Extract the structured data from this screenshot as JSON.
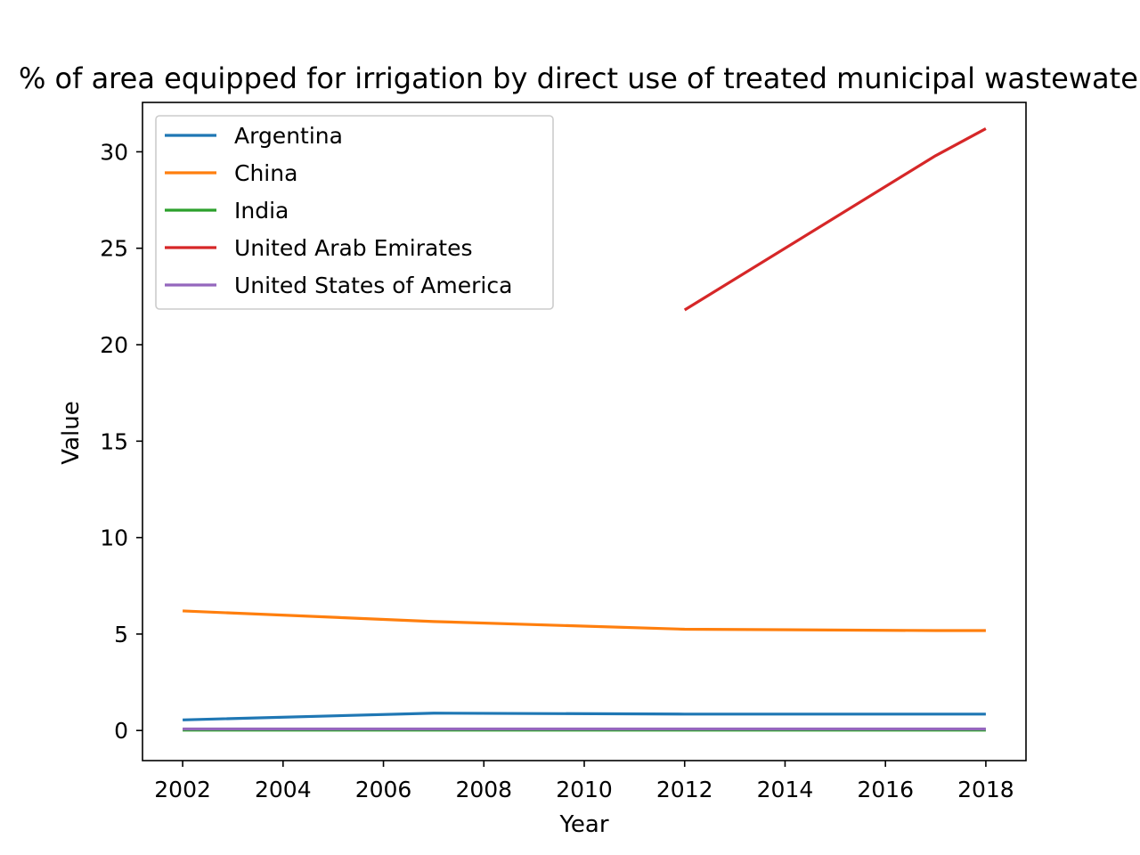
{
  "chart_data": {
    "type": "line",
    "title": "% of area equipped for irrigation by direct use of  treated municipal wastewater",
    "xlabel": "Year",
    "ylabel": "Value",
    "xlim": [
      2001.2,
      2018.8
    ],
    "ylim": [
      -1.56,
      32.56
    ],
    "xticks": [
      2002,
      2004,
      2006,
      2008,
      2010,
      2012,
      2014,
      2016,
      2018
    ],
    "yticks": [
      0,
      5,
      10,
      15,
      20,
      25,
      30
    ],
    "grid": false,
    "legend_position": "top-left",
    "series": [
      {
        "name": "Argentina",
        "color": "#1f77b4",
        "x": [
          2002,
          2007,
          2012,
          2017,
          2018
        ],
        "y": [
          0.55,
          0.9,
          0.85,
          0.85,
          0.85
        ]
      },
      {
        "name": "China",
        "color": "#ff7f0e",
        "x": [
          2002,
          2007,
          2012,
          2017,
          2018
        ],
        "y": [
          6.2,
          5.65,
          5.25,
          5.18,
          5.18
        ]
      },
      {
        "name": "India",
        "color": "#2ca02c",
        "x": [
          2002,
          2007,
          2012,
          2017,
          2018
        ],
        "y": [
          0.02,
          0.02,
          0.02,
          0.02,
          0.02
        ]
      },
      {
        "name": "United Arab Emirates",
        "color": "#d62728",
        "x": [
          2012,
          2017,
          2018
        ],
        "y": [
          21.8,
          29.8,
          31.2
        ]
      },
      {
        "name": "United States of America",
        "color": "#9467bd",
        "x": [
          2002,
          2007,
          2012,
          2017,
          2018
        ],
        "y": [
          0.08,
          0.08,
          0.08,
          0.08,
          0.08
        ]
      }
    ]
  }
}
